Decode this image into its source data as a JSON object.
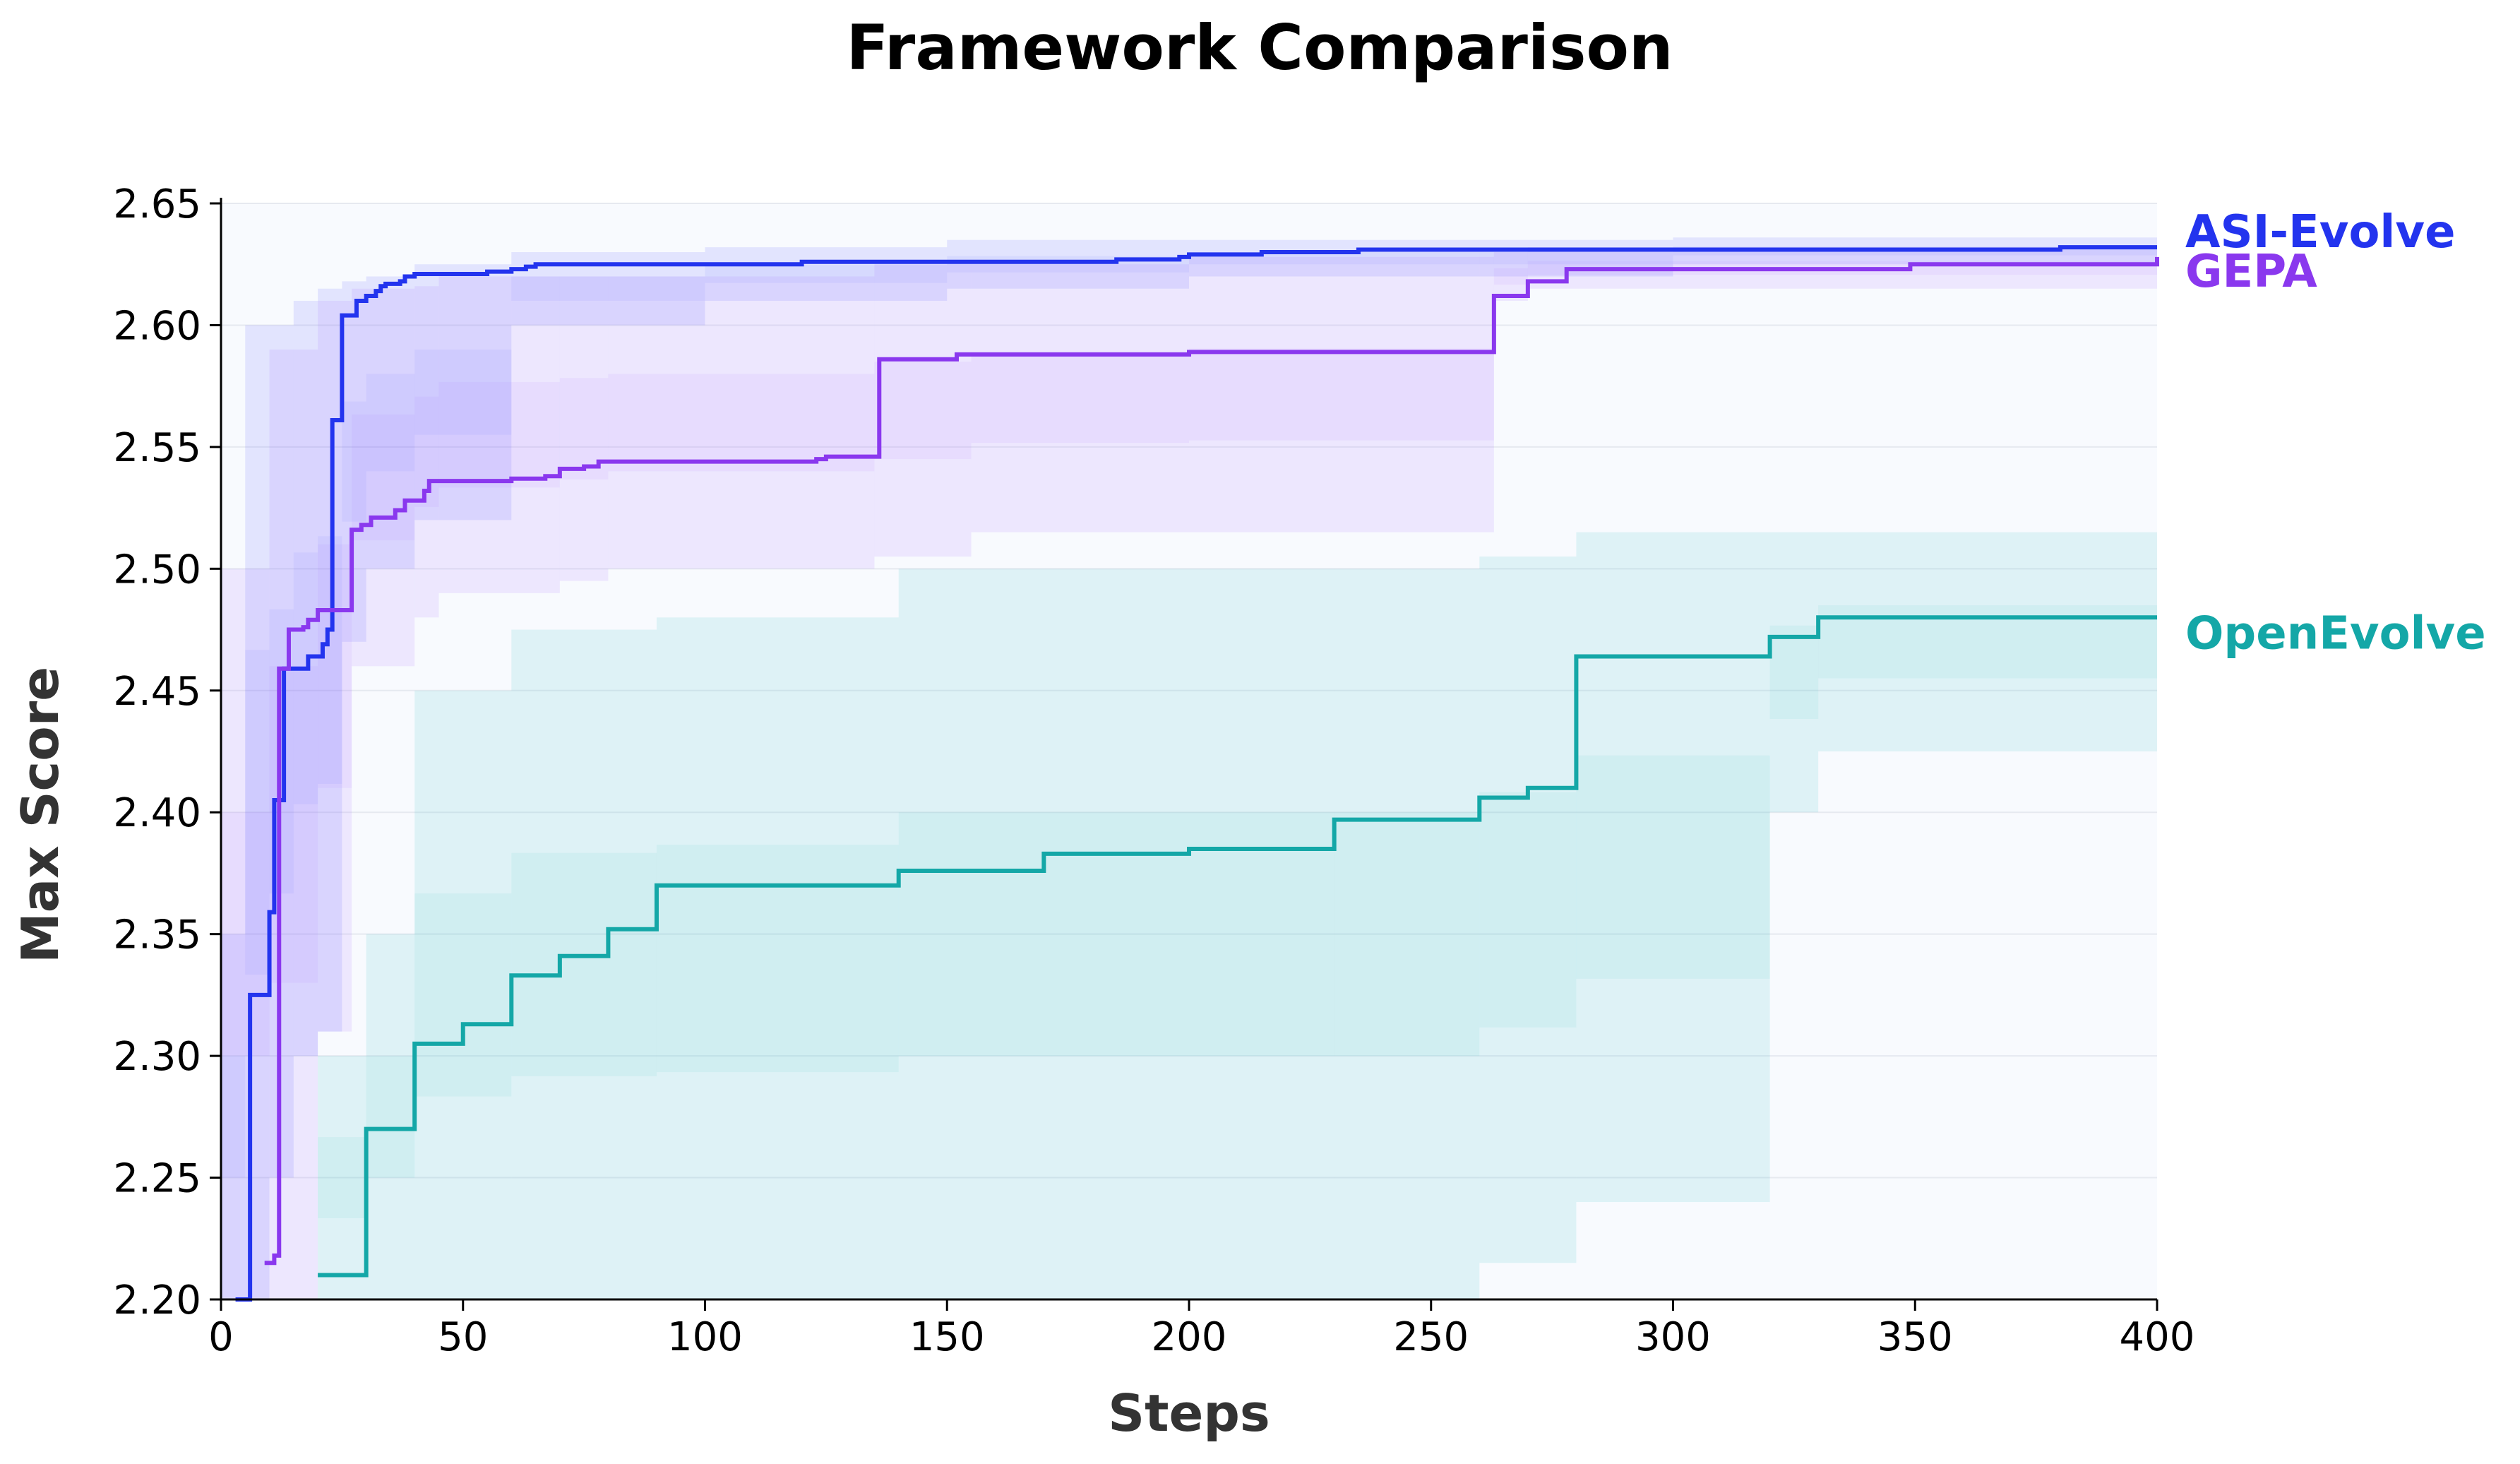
{
  "chart_data": {
    "type": "line",
    "step": true,
    "title": "Framework Comparison",
    "xlabel": "Steps",
    "ylabel": "Max Score",
    "xlim": [
      0,
      400
    ],
    "ylim": [
      2.2,
      2.65
    ],
    "x_ticks": [
      0,
      50,
      100,
      150,
      200,
      250,
      300,
      350,
      400
    ],
    "x_tick_labels": [
      "0",
      "50",
      "100",
      "150",
      "200",
      "250",
      "300",
      "350",
      "400"
    ],
    "y_ticks": [
      2.2,
      2.25,
      2.3,
      2.35,
      2.4,
      2.45,
      2.5,
      2.55,
      2.6,
      2.65
    ],
    "y_tick_labels": [
      "2.20",
      "2.25",
      "2.30",
      "2.35",
      "2.40",
      "2.45",
      "2.50",
      "2.55",
      "2.60",
      "2.65"
    ],
    "grid": "horizontal",
    "legend": "direct labels at right end of lines",
    "series": [
      {
        "name": "ASI-Evolve",
        "color": "#2334ee",
        "band_color": "#4a58ff",
        "x": [
          3,
          6,
          10,
          11,
          13,
          18,
          21,
          22,
          23,
          25,
          28,
          30,
          32,
          33,
          34,
          37,
          38,
          40,
          55,
          60,
          63,
          65,
          120,
          185,
          198,
          200,
          215,
          235,
          240,
          380,
          400
        ],
        "y": [
          2.2,
          2.325,
          2.359,
          2.405,
          2.459,
          2.464,
          2.469,
          2.475,
          2.561,
          2.604,
          2.61,
          2.612,
          2.614,
          2.616,
          2.617,
          2.618,
          2.62,
          2.621,
          2.622,
          2.623,
          2.624,
          2.625,
          2.626,
          2.627,
          2.628,
          2.629,
          2.63,
          2.631,
          2.631,
          2.632,
          2.632
        ],
        "band": {
          "x": [
            0,
            5,
            10,
            15,
            20,
            25,
            30,
            40,
            60,
            100,
            150,
            200,
            260,
            300,
            400
          ],
          "lower": [
            2.2,
            2.2,
            2.25,
            2.3,
            2.31,
            2.47,
            2.5,
            2.52,
            2.6,
            2.61,
            2.615,
            2.62,
            2.62,
            2.625,
            2.625
          ],
          "upper": [
            2.35,
            2.6,
            2.6,
            2.61,
            2.615,
            2.618,
            2.62,
            2.625,
            2.63,
            2.632,
            2.635,
            2.635,
            2.635,
            2.636,
            2.636
          ]
        }
      },
      {
        "name": "GEPA",
        "color": "#8a38ee",
        "band_color": "#a46bff",
        "x": [
          9,
          11,
          12,
          14,
          17,
          18,
          20,
          27,
          29,
          31,
          36,
          38,
          42,
          43,
          60,
          65,
          67,
          70,
          75,
          78,
          123,
          125,
          135,
          136,
          152,
          200,
          263,
          270,
          278,
          349,
          400
        ],
        "y": [
          2.215,
          2.218,
          2.459,
          2.475,
          2.476,
          2.479,
          2.483,
          2.516,
          2.518,
          2.521,
          2.524,
          2.528,
          2.532,
          2.536,
          2.537,
          2.537,
          2.538,
          2.541,
          2.542,
          2.544,
          2.545,
          2.546,
          2.546,
          2.586,
          2.588,
          2.589,
          2.612,
          2.618,
          2.623,
          2.625,
          2.628
        ],
        "band": {
          "x": [
            0,
            10,
            20,
            27,
            40,
            45,
            70,
            80,
            135,
            155,
            200,
            263,
            270,
            400
          ],
          "lower": [
            2.2,
            2.2,
            2.31,
            2.46,
            2.48,
            2.49,
            2.495,
            2.5,
            2.505,
            2.515,
            2.515,
            2.61,
            2.615,
            2.62
          ],
          "upper": [
            2.5,
            2.59,
            2.61,
            2.615,
            2.616,
            2.62,
            2.62,
            2.62,
            2.625,
            2.625,
            2.628,
            2.63,
            2.632,
            2.634
          ]
        }
      },
      {
        "name": "OpenEvolve",
        "color": "#14a7a7",
        "band_color": "#2ec4c4",
        "x": [
          20,
          30,
          40,
          50,
          60,
          70,
          80,
          90,
          140,
          170,
          200,
          230,
          260,
          270,
          280,
          320,
          330,
          400
        ],
        "y": [
          2.21,
          2.27,
          2.305,
          2.313,
          2.333,
          2.341,
          2.352,
          2.37,
          2.376,
          2.383,
          2.385,
          2.397,
          2.406,
          2.41,
          2.464,
          2.472,
          2.48,
          2.48
        ],
        "band": {
          "x": [
            20,
            30,
            40,
            60,
            90,
            140,
            230,
            260,
            280,
            320,
            330,
            400
          ],
          "lower": [
            2.2,
            2.2,
            2.2,
            2.2,
            2.2,
            2.2,
            2.2,
            2.215,
            2.24,
            2.4,
            2.425,
            2.45
          ],
          "upper": [
            2.3,
            2.35,
            2.45,
            2.475,
            2.48,
            2.5,
            2.5,
            2.505,
            2.515,
            2.515,
            2.515,
            2.515
          ]
        }
      }
    ]
  }
}
